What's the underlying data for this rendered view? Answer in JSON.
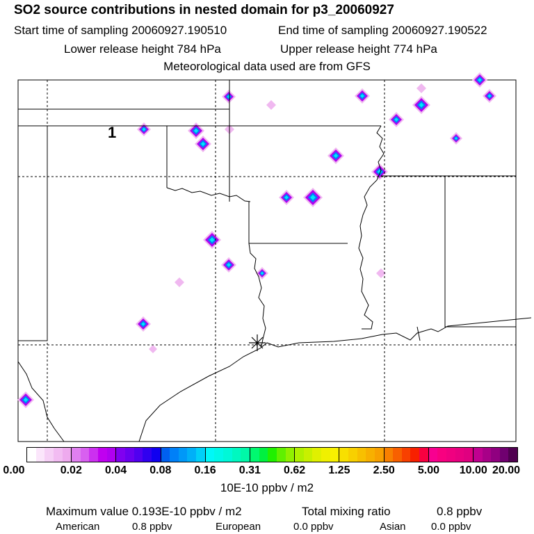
{
  "header": {
    "title": "SO2 source contributions in nested domain for p3_20060927",
    "start": "Start time of sampling 20060927.190510",
    "end": "End time of sampling 20060927.190522",
    "lower": "Lower release height  784 hPa",
    "upper": "Upper release height  774 hPa",
    "met": "Meteorological data used are from GFS"
  },
  "map": {
    "label": "1",
    "source_marker": "star-icon"
  },
  "colorbar": {
    "ticks": [
      "0.00",
      "0.02",
      "0.04",
      "0.08",
      "0.16",
      "0.31",
      "0.62",
      "1.25",
      "2.50",
      "5.00",
      "10.00",
      "20.00"
    ],
    "unit": "10E-10 ppbv / m2",
    "segments": [
      [
        "#ffffff",
        "#fbe6fb",
        "#f6d0f6",
        "#f2bcf2",
        "#eeaaee"
      ],
      [
        "#e080f0",
        "#d860f0",
        "#cc30f0",
        "#c000f0",
        "#b000f0"
      ],
      [
        "#8000f0",
        "#6a00f0",
        "#5000f0",
        "#3000f0",
        "#1000f0"
      ],
      [
        "#0060f0",
        "#0080f8",
        "#0098f8",
        "#00b0f8",
        "#00d0f8"
      ],
      [
        "#00f8f8",
        "#00f8e8",
        "#00f8d8",
        "#00f8c0",
        "#00f8a8"
      ],
      [
        "#00f870",
        "#00f040",
        "#20f000",
        "#60f000",
        "#90f000"
      ],
      [
        "#b0f000",
        "#c8f000",
        "#e0f000",
        "#f0f000",
        "#f8f000"
      ],
      [
        "#f8e000",
        "#f8d000",
        "#f8c000",
        "#f8b000",
        "#f8a000"
      ],
      [
        "#f88000",
        "#f86000",
        "#f84000",
        "#f82000",
        "#f80040"
      ],
      [
        "#f80090",
        "#f80080",
        "#f00080",
        "#e80080",
        "#e00080"
      ],
      [
        "#c00090",
        "#a80088",
        "#900080",
        "#700070",
        "#500050"
      ]
    ]
  },
  "summary": {
    "max_label": "Maximum value  0.193E-10 ppbv / m2",
    "total_label": "Total mixing ratio",
    "total_value": "0.8 ppbv",
    "american_label": "American",
    "american_value": "0.8 ppbv",
    "european_label": "European",
    "european_value": "0.0 ppbv",
    "asian_label": "Asian",
    "asian_value": "0.0 ppbv"
  }
}
